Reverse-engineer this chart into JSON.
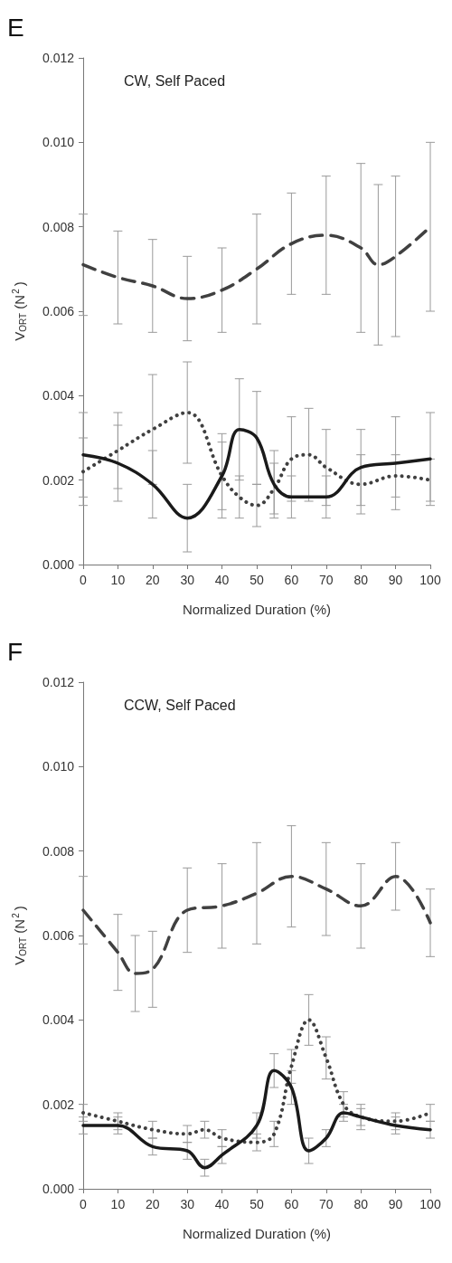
{
  "chart_data": [
    {
      "type": "line",
      "title": "CW, Self Paced",
      "xlabel": "Normalized Duration (%)",
      "ylabel": "V$_{ORT}$ (N$^{2}$)",
      "annotations": [
        "E"
      ],
      "xlim": [
        0,
        100
      ],
      "xticks": [
        0,
        10,
        20,
        30,
        40,
        50,
        60,
        70,
        80,
        90,
        100
      ],
      "ylim": [
        0,
        0.012
      ],
      "yticks": [
        {
          "value": 0,
          "label": "0.000"
        },
        {
          "value": 0.002,
          "label": "0.002"
        },
        {
          "value": 0.004,
          "label": "0.004"
        },
        {
          "value": 0.006,
          "label": "0.006"
        },
        {
          "value": 0.008,
          "label": "0.008"
        },
        {
          "value": 0.01,
          "label": "0.010"
        },
        {
          "value": 0.012,
          "label": "0.012"
        }
      ],
      "grid": false,
      "marker": "none",
      "series": [
        {
          "color": "#404040",
          "line_style": "dashed",
          "x": [
            0,
            10,
            20,
            30,
            40,
            50,
            60,
            70,
            80,
            85,
            90,
            100
          ],
          "values": [
            0.0071,
            0.0068,
            0.0066,
            0.0063,
            0.0065,
            0.007,
            0.0076,
            0.0078,
            0.0075,
            0.0071,
            0.0073,
            0.008
          ],
          "errors": [
            0.0012,
            0.0011,
            0.0011,
            0.001,
            0.001,
            0.0013,
            0.0012,
            0.0014,
            0.002,
            0.0019,
            0.0019,
            0.002
          ]
        },
        {
          "color": "#404040",
          "line_style": "dotted",
          "x": [
            0,
            10,
            20,
            30,
            40,
            45,
            50,
            55,
            60,
            65,
            70,
            80,
            90,
            100
          ],
          "values": [
            0.0022,
            0.0027,
            0.0032,
            0.0036,
            0.0021,
            0.0016,
            0.0014,
            0.0018,
            0.0025,
            0.0026,
            0.0023,
            0.0019,
            0.0021,
            0.002
          ],
          "errors": [
            0.0008,
            0.0009,
            0.0013,
            0.0012,
            0.0008,
            0.0005,
            0.0005,
            0.0006,
            0.001,
            0.0011,
            0.0009,
            0.0007,
            0.0005,
            0.0005
          ]
        },
        {
          "color": "#1a1a1a",
          "line_style": "solid",
          "x": [
            0,
            10,
            20,
            30,
            40,
            45,
            50,
            55,
            60,
            70,
            80,
            90,
            100
          ],
          "values": [
            0.0026,
            0.0024,
            0.0019,
            0.0011,
            0.0021,
            0.0032,
            0.003,
            0.0019,
            0.0016,
            0.0016,
            0.0023,
            0.0024,
            0.0025
          ],
          "errors": [
            0.001,
            0.0009,
            0.0008,
            0.0008,
            0.001,
            0.0012,
            0.0011,
            0.0008,
            0.0005,
            0.0005,
            0.0009,
            0.0011,
            0.0011
          ]
        }
      ]
    },
    {
      "type": "line",
      "title": "CCW, Self Paced",
      "xlabel": "Normalized Duration (%)",
      "ylabel": "V$_{ORT}$ (N$^{2}$)",
      "annotations": [
        "F"
      ],
      "xlim": [
        0,
        100
      ],
      "xticks": [
        0,
        10,
        20,
        30,
        40,
        50,
        60,
        70,
        80,
        90,
        100
      ],
      "ylim": [
        0,
        0.012
      ],
      "yticks": [
        {
          "value": 0,
          "label": "0.000"
        },
        {
          "value": 0.002,
          "label": "0.002"
        },
        {
          "value": 0.004,
          "label": "0.004"
        },
        {
          "value": 0.006,
          "label": "0.006"
        },
        {
          "value": 0.008,
          "label": "0.008"
        },
        {
          "value": 0.01,
          "label": "0.010"
        },
        {
          "value": 0.012,
          "label": "0.012"
        }
      ],
      "grid": false,
      "marker": "none",
      "series": [
        {
          "color": "#404040",
          "line_style": "dashed",
          "x": [
            0,
            10,
            15,
            20,
            30,
            40,
            50,
            60,
            70,
            80,
            90,
            100
          ],
          "values": [
            0.0066,
            0.0056,
            0.0051,
            0.0052,
            0.0066,
            0.0067,
            0.007,
            0.0074,
            0.0071,
            0.0067,
            0.0074,
            0.0063
          ],
          "errors": [
            0.0008,
            0.0009,
            0.0009,
            0.0009,
            0.001,
            0.001,
            0.0012,
            0.0012,
            0.0011,
            0.001,
            0.0008,
            0.0008
          ]
        },
        {
          "color": "#404040",
          "line_style": "dotted",
          "x": [
            0,
            10,
            20,
            30,
            35,
            40,
            50,
            55,
            60,
            65,
            70,
            75,
            80,
            90,
            100
          ],
          "values": [
            0.0018,
            0.0016,
            0.0014,
            0.0013,
            0.0014,
            0.0012,
            0.0011,
            0.0013,
            0.0029,
            0.004,
            0.0031,
            0.002,
            0.0017,
            0.0016,
            0.0018
          ],
          "errors": [
            0.0002,
            0.0002,
            0.0002,
            0.0002,
            0.0002,
            0.0002,
            0.0002,
            0.0003,
            0.0004,
            0.0006,
            0.0005,
            0.0003,
            0.0002,
            0.0002,
            0.0002
          ]
        },
        {
          "color": "#1a1a1a",
          "line_style": "solid",
          "x": [
            0,
            10,
            20,
            30,
            35,
            40,
            50,
            55,
            60,
            65,
            70,
            75,
            80,
            90,
            100
          ],
          "values": [
            0.0015,
            0.0015,
            0.001,
            0.0009,
            0.0005,
            0.0008,
            0.0015,
            0.0028,
            0.0024,
            0.0009,
            0.0012,
            0.0018,
            0.0017,
            0.0015,
            0.0014
          ],
          "errors": [
            0.0002,
            0.0002,
            0.0002,
            0.0002,
            0.0002,
            0.0002,
            0.0003,
            0.0004,
            0.0004,
            0.0003,
            0.0002,
            0.0002,
            0.0003,
            0.0002,
            0.0002
          ]
        }
      ]
    }
  ]
}
